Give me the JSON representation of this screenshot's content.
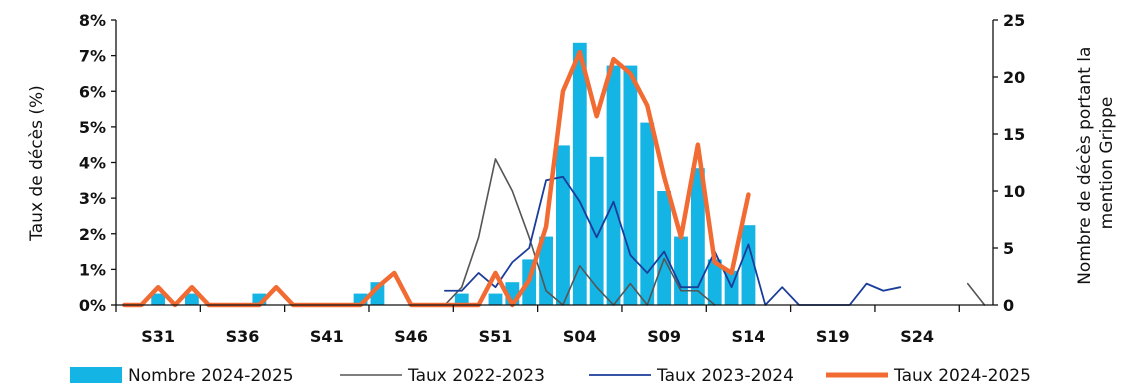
{
  "chart_data": {
    "type": "bar",
    "x_tick_labels": [
      "S31",
      "S36",
      "S41",
      "S46",
      "S51",
      "S04",
      "S09",
      "S14",
      "S19",
      "S24"
    ],
    "left_axis": {
      "label": "Taux de décès (%)",
      "ylim": [
        0,
        8
      ],
      "ticks": [
        "0%",
        "1%",
        "2%",
        "3%",
        "4%",
        "5%",
        "6%",
        "7%",
        "8%"
      ]
    },
    "right_axis": {
      "label_lines": [
        "Nombre de décès portant la",
        "mention Grippe"
      ],
      "ylim": [
        0,
        25
      ],
      "ticks": [
        "0",
        "5",
        "10",
        "15",
        "20",
        "25"
      ]
    },
    "x_start_week": 29,
    "series": [
      {
        "name": "Nombre 2024-2025",
        "type": "bar",
        "axis": "right",
        "color": "#14b4e4",
        "values": [
          0,
          0,
          1,
          0,
          1,
          0,
          0,
          0,
          1,
          0,
          0,
          0,
          0,
          0,
          1,
          2,
          0,
          0,
          0,
          0,
          1,
          0,
          1,
          2,
          4,
          6,
          14,
          23,
          13,
          21,
          21,
          16,
          10,
          6,
          12,
          4,
          3,
          7
        ]
      },
      {
        "name": "Taux 2022-2023",
        "type": "line",
        "axis": "left",
        "color": "#555555",
        "values": [
          null,
          null,
          null,
          null,
          null,
          null,
          null,
          null,
          null,
          null,
          null,
          null,
          null,
          null,
          null,
          null,
          null,
          null,
          null,
          0,
          0.5,
          1.9,
          4.1,
          3.2,
          1.9,
          0.4,
          0,
          1.1,
          0.5,
          0,
          0.6,
          0,
          1.3,
          0.4,
          0.4,
          0,
          null,
          null,
          null,
          null,
          null,
          null,
          null,
          null,
          null,
          null,
          null,
          null,
          null,
          null,
          0.6,
          0
        ]
      },
      {
        "name": "Taux 2023-2024",
        "type": "line",
        "axis": "left",
        "color": "#1a3d9a",
        "values": [
          null,
          null,
          null,
          null,
          null,
          null,
          null,
          null,
          null,
          null,
          null,
          null,
          null,
          null,
          null,
          null,
          null,
          null,
          null,
          0.4,
          0.4,
          0.9,
          0.5,
          1.2,
          1.6,
          3.5,
          3.6,
          2.9,
          1.9,
          2.9,
          1.4,
          0.9,
          1.5,
          0.5,
          0.5,
          1.5,
          0.5,
          1.7,
          0,
          0.5,
          0,
          0,
          0,
          0,
          0.6,
          0.4,
          0.5
        ]
      },
      {
        "name": "Taux 2024-2025",
        "type": "line",
        "axis": "left",
        "color": "#f26b32",
        "values": [
          0,
          0,
          0.5,
          0,
          0.5,
          0,
          0,
          0,
          0,
          0.5,
          0,
          0,
          0,
          0,
          0,
          0.5,
          0.9,
          0,
          0,
          0,
          0,
          0,
          0.9,
          0,
          0.7,
          2.2,
          6.0,
          7.1,
          5.3,
          6.9,
          6.5,
          5.6,
          3.6,
          1.9,
          4.5,
          1.2,
          0.9,
          3.1
        ]
      }
    ],
    "grid": false,
    "legend_position": "bottom"
  }
}
